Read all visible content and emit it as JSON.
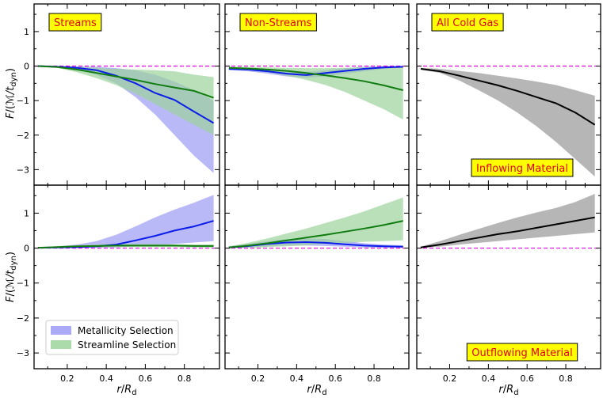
{
  "chart_data": {
    "type": "area",
    "x_ticks": [
      0.2,
      0.4,
      0.6,
      0.8
    ],
    "x_tick_labels": [
      "0.2",
      "0.4",
      "0.6",
      "0.8"
    ],
    "xlim": [
      0.03,
      0.98
    ],
    "ylim": [
      -3.45,
      1.8
    ],
    "y_ticks": [
      -3,
      -2,
      -1,
      0,
      1
    ],
    "y_tick_labels": [
      "−3",
      "−2",
      "−1",
      "0",
      "1"
    ],
    "xlabel": "r/R_d",
    "ylabel": "F/(ℳ/t_dyn)",
    "colors": {
      "metallicity_line": "#0b1de8",
      "metallicity_band": "#9b9bf5",
      "streamline_line": "#117d11",
      "streamline_band": "#9cd39c",
      "cold_line": "#000000",
      "cold_band": "#a9a9a9",
      "zero_line": "#e000e0"
    },
    "legend": {
      "placement": "lower-left",
      "entries": [
        "Metallicity Selection",
        "Streamline Selection"
      ]
    },
    "panels": [
      {
        "row": 0,
        "col": 0,
        "label": "Streams",
        "series": [
          {
            "name": "Metallicity Selection",
            "x": [
              0.05,
              0.15,
              0.25,
              0.35,
              0.45,
              0.55,
              0.65,
              0.75,
              0.85,
              0.95
            ],
            "y": [
              0,
              -0.02,
              -0.05,
              -0.12,
              -0.28,
              -0.5,
              -0.78,
              -0.98,
              -1.32,
              -1.65
            ],
            "lo": [
              -0.01,
              -0.04,
              -0.1,
              -0.25,
              -0.5,
              -0.9,
              -1.4,
              -2.0,
              -2.6,
              -3.1
            ],
            "hi": [
              0,
              0,
              -0.01,
              -0.02,
              -0.06,
              -0.12,
              -0.25,
              -0.45,
              -0.7,
              -1.0
            ]
          },
          {
            "name": "Streamline Selection",
            "x": [
              0.05,
              0.15,
              0.25,
              0.35,
              0.45,
              0.55,
              0.65,
              0.75,
              0.85,
              0.95
            ],
            "y": [
              0,
              -0.03,
              -0.1,
              -0.2,
              -0.3,
              -0.4,
              -0.52,
              -0.62,
              -0.72,
              -0.92
            ],
            "lo": [
              -0.01,
              -0.05,
              -0.18,
              -0.35,
              -0.55,
              -0.8,
              -1.1,
              -1.4,
              -1.7,
              -2.0
            ],
            "hi": [
              0,
              0,
              -0.02,
              -0.05,
              -0.08,
              -0.1,
              -0.12,
              -0.15,
              -0.25,
              -0.32
            ]
          }
        ]
      },
      {
        "row": 0,
        "col": 1,
        "label": "Non-Streams",
        "series": [
          {
            "name": "Metallicity Selection",
            "x": [
              0.05,
              0.15,
              0.25,
              0.35,
              0.45,
              0.55,
              0.65,
              0.75,
              0.85,
              0.95
            ],
            "y": [
              -0.08,
              -0.1,
              -0.15,
              -0.22,
              -0.26,
              -0.2,
              -0.14,
              -0.08,
              -0.04,
              -0.02
            ],
            "lo": [
              -0.12,
              -0.15,
              -0.22,
              -0.3,
              -0.34,
              -0.3,
              -0.22,
              -0.15,
              -0.08,
              -0.05
            ],
            "hi": [
              -0.04,
              -0.05,
              -0.08,
              -0.13,
              -0.17,
              -0.12,
              -0.06,
              -0.02,
              0,
              0
            ]
          },
          {
            "name": "Streamline Selection",
            "x": [
              0.05,
              0.15,
              0.25,
              0.35,
              0.45,
              0.55,
              0.65,
              0.75,
              0.85,
              0.95
            ],
            "y": [
              -0.05,
              -0.07,
              -0.1,
              -0.14,
              -0.2,
              -0.27,
              -0.35,
              -0.44,
              -0.56,
              -0.7
            ],
            "lo": [
              -0.1,
              -0.12,
              -0.18,
              -0.28,
              -0.4,
              -0.55,
              -0.75,
              -1.0,
              -1.25,
              -1.55
            ],
            "hi": [
              -0.02,
              -0.03,
              -0.04,
              -0.05,
              -0.06,
              -0.06,
              -0.05,
              -0.04,
              -0.03,
              -0.02
            ]
          }
        ]
      },
      {
        "row": 0,
        "col": 2,
        "label": "All Cold Gas",
        "note": "Inflowing Material",
        "series": [
          {
            "name": "All Cold Gas",
            "x": [
              0.05,
              0.15,
              0.25,
              0.35,
              0.45,
              0.55,
              0.65,
              0.75,
              0.85,
              0.95
            ],
            "y": [
              -0.08,
              -0.15,
              -0.28,
              -0.42,
              -0.56,
              -0.72,
              -0.9,
              -1.08,
              -1.35,
              -1.7
            ],
            "lo": [
              -0.1,
              -0.2,
              -0.42,
              -0.7,
              -1.0,
              -1.35,
              -1.75,
              -2.2,
              -2.7,
              -3.2
            ],
            "hi": [
              -0.05,
              -0.08,
              -0.14,
              -0.2,
              -0.28,
              -0.36,
              -0.45,
              -0.55,
              -0.7,
              -0.86
            ]
          }
        ]
      },
      {
        "row": 1,
        "col": 0,
        "series": [
          {
            "name": "Metallicity Selection",
            "x": [
              0.05,
              0.15,
              0.25,
              0.35,
              0.45,
              0.55,
              0.65,
              0.75,
              0.85,
              0.95
            ],
            "y": [
              0.01,
              0.02,
              0.03,
              0.05,
              0.1,
              0.22,
              0.35,
              0.5,
              0.62,
              0.78
            ],
            "lo": [
              0,
              0,
              0,
              0.01,
              0.02,
              0.05,
              0.08,
              0.12,
              0.16,
              0.2
            ],
            "hi": [
              0.02,
              0.05,
              0.1,
              0.2,
              0.38,
              0.62,
              0.88,
              1.1,
              1.3,
              1.52
            ]
          },
          {
            "name": "Streamline Selection",
            "x": [
              0.05,
              0.15,
              0.25,
              0.35,
              0.45,
              0.55,
              0.65,
              0.75,
              0.85,
              0.95
            ],
            "y": [
              0.01,
              0.03,
              0.05,
              0.06,
              0.07,
              0.07,
              0.07,
              0.07,
              0.06,
              0.06
            ],
            "lo": [
              0,
              0.01,
              0.02,
              0.03,
              0.03,
              0.03,
              0.03,
              0.03,
              0.02,
              0.02
            ],
            "hi": [
              0.02,
              0.05,
              0.08,
              0.1,
              0.12,
              0.12,
              0.12,
              0.11,
              0.1,
              0.1
            ]
          }
        ]
      },
      {
        "row": 1,
        "col": 1,
        "series": [
          {
            "name": "Metallicity Selection",
            "x": [
              0.05,
              0.15,
              0.25,
              0.35,
              0.45,
              0.55,
              0.65,
              0.75,
              0.85,
              0.95
            ],
            "y": [
              0.02,
              0.06,
              0.12,
              0.16,
              0.17,
              0.15,
              0.11,
              0.07,
              0.05,
              0.04
            ],
            "lo": [
              0,
              0.02,
              0.05,
              0.07,
              0.07,
              0.06,
              0.04,
              0.02,
              0.01,
              0
            ],
            "hi": [
              0.05,
              0.12,
              0.2,
              0.26,
              0.28,
              0.26,
              0.2,
              0.14,
              0.1,
              0.08
            ]
          },
          {
            "name": "Streamline Selection",
            "x": [
              0.05,
              0.15,
              0.25,
              0.35,
              0.45,
              0.55,
              0.65,
              0.75,
              0.85,
              0.95
            ],
            "y": [
              0.02,
              0.07,
              0.14,
              0.22,
              0.3,
              0.38,
              0.47,
              0.56,
              0.66,
              0.78
            ],
            "lo": [
              0,
              0.01,
              0.03,
              0.05,
              0.08,
              0.12,
              0.15,
              0.18,
              0.2,
              0.22
            ],
            "hi": [
              0.05,
              0.15,
              0.28,
              0.42,
              0.56,
              0.72,
              0.88,
              1.05,
              1.25,
              1.45
            ]
          }
        ]
      },
      {
        "row": 1,
        "col": 2,
        "note": "Outflowing Material",
        "series": [
          {
            "name": "All Cold Gas",
            "x": [
              0.05,
              0.15,
              0.25,
              0.35,
              0.45,
              0.55,
              0.65,
              0.75,
              0.85,
              0.95
            ],
            "y": [
              0.02,
              0.1,
              0.2,
              0.3,
              0.4,
              0.48,
              0.58,
              0.68,
              0.78,
              0.88
            ],
            "lo": [
              0.01,
              0.04,
              0.1,
              0.15,
              0.2,
              0.25,
              0.3,
              0.35,
              0.4,
              0.45
            ],
            "hi": [
              0.04,
              0.2,
              0.38,
              0.55,
              0.72,
              0.88,
              1.02,
              1.15,
              1.32,
              1.55
            ]
          }
        ]
      }
    ]
  }
}
